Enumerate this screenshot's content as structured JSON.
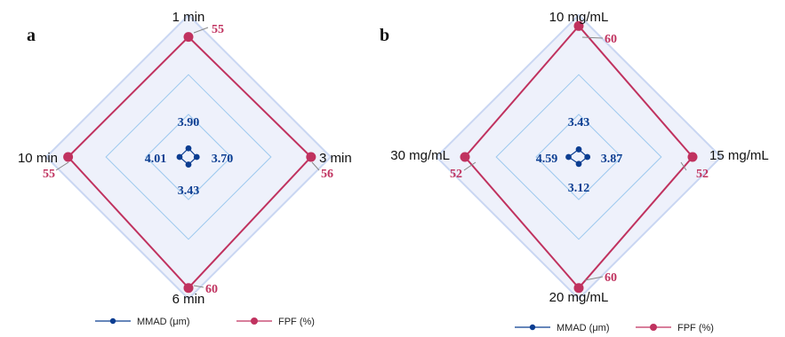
{
  "colors": {
    "mmad": "#0b3d91",
    "fpf": "#c0325f",
    "grid": "#9cc8ee",
    "fill": "#eef1fb",
    "outer": "#c9d6f2"
  },
  "chart_data": [
    {
      "type": "radar",
      "panel_label": "a",
      "axes": [
        "1 min",
        "3 min",
        "6 min",
        "10 min"
      ],
      "scale_max": 65,
      "series": [
        {
          "name": "MMAD (µm)",
          "values": [
            3.9,
            3.7,
            3.43,
            4.01
          ]
        },
        {
          "name": "FPF (%)",
          "values": [
            55,
            56,
            60,
            55
          ]
        }
      ],
      "mmad_labels": [
        "3.90",
        "3.70",
        "3.43",
        "4.01"
      ],
      "fpf_labels": [
        "55",
        "56",
        "60",
        "55"
      ],
      "legend": [
        "MMAD (μm)",
        "FPF (%)"
      ]
    },
    {
      "type": "radar",
      "panel_label": "b",
      "axes": [
        "10 mg/mL",
        "15 mg/mL",
        "20 mg/mL",
        "30 mg/mL"
      ],
      "scale_max": 65,
      "series": [
        {
          "name": "MMAD (µm)",
          "values": [
            3.43,
            3.87,
            3.12,
            4.59
          ]
        },
        {
          "name": "FPF (%)",
          "values": [
            60,
            52,
            60,
            52
          ]
        }
      ],
      "mmad_labels": [
        "3.43",
        "3.87",
        "3.12",
        "4.59"
      ],
      "fpf_labels": [
        "60",
        "52",
        "60",
        "52"
      ],
      "legend": [
        "MMAD (μm)",
        "FPF (%)"
      ]
    }
  ]
}
